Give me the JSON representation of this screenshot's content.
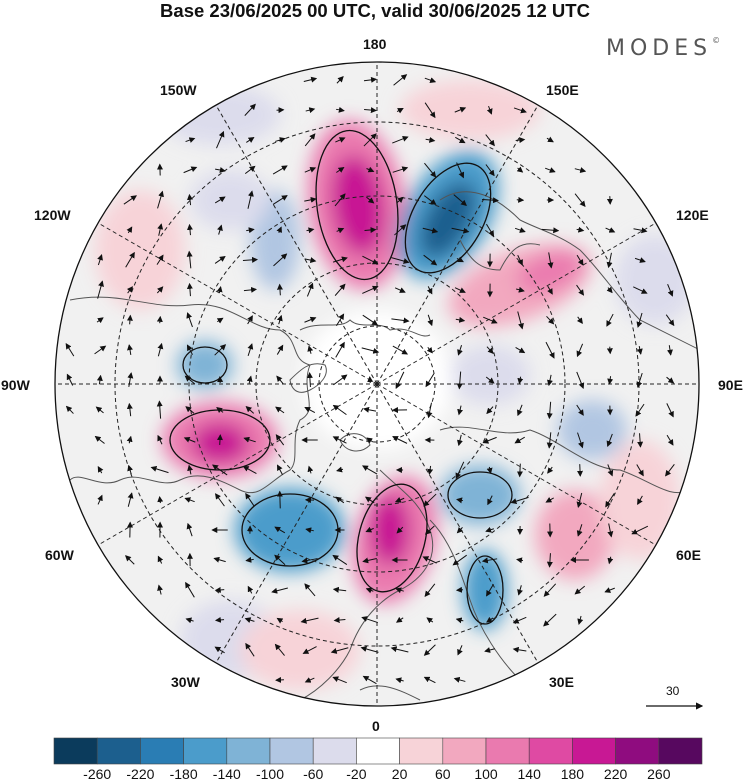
{
  "title": "Base 23/06/2025 00 UTC, valid 30/06/2025 12 UTC",
  "brand": "MODES",
  "brand_mark": "©",
  "longitude_labels": {
    "lon_180": "180",
    "lon_150E": "150E",
    "lon_120E": "120E",
    "lon_90E": "90E",
    "lon_60E": "60E",
    "lon_30E": "30E",
    "lon_0": "0",
    "lon_30W": "30W",
    "lon_60W": "60W",
    "lon_90W": "90W",
    "lon_120W": "120W",
    "lon_150W": "150W"
  },
  "vector_scale_label": "30",
  "legend": {
    "ticks": [
      "-260",
      "-220",
      "-180",
      "-140",
      "-100",
      "-60",
      "-20",
      "20",
      "60",
      "100",
      "140",
      "180",
      "220",
      "260"
    ],
    "colors": [
      "#0b3b5c",
      "#1c5f8e",
      "#2a7db4",
      "#4b9ccb",
      "#7fb3d6",
      "#b1c6e2",
      "#dcdcec",
      "#ffffff",
      "#f7d3d8",
      "#f2a8bf",
      "#ea7aaf",
      "#df4aa3",
      "#c81894",
      "#8f0c7f",
      "#57085f"
    ]
  },
  "map_colors": {
    "land": "#ececec",
    "coast": "#555555",
    "grid": "#222222",
    "arrow": "#111111"
  }
}
